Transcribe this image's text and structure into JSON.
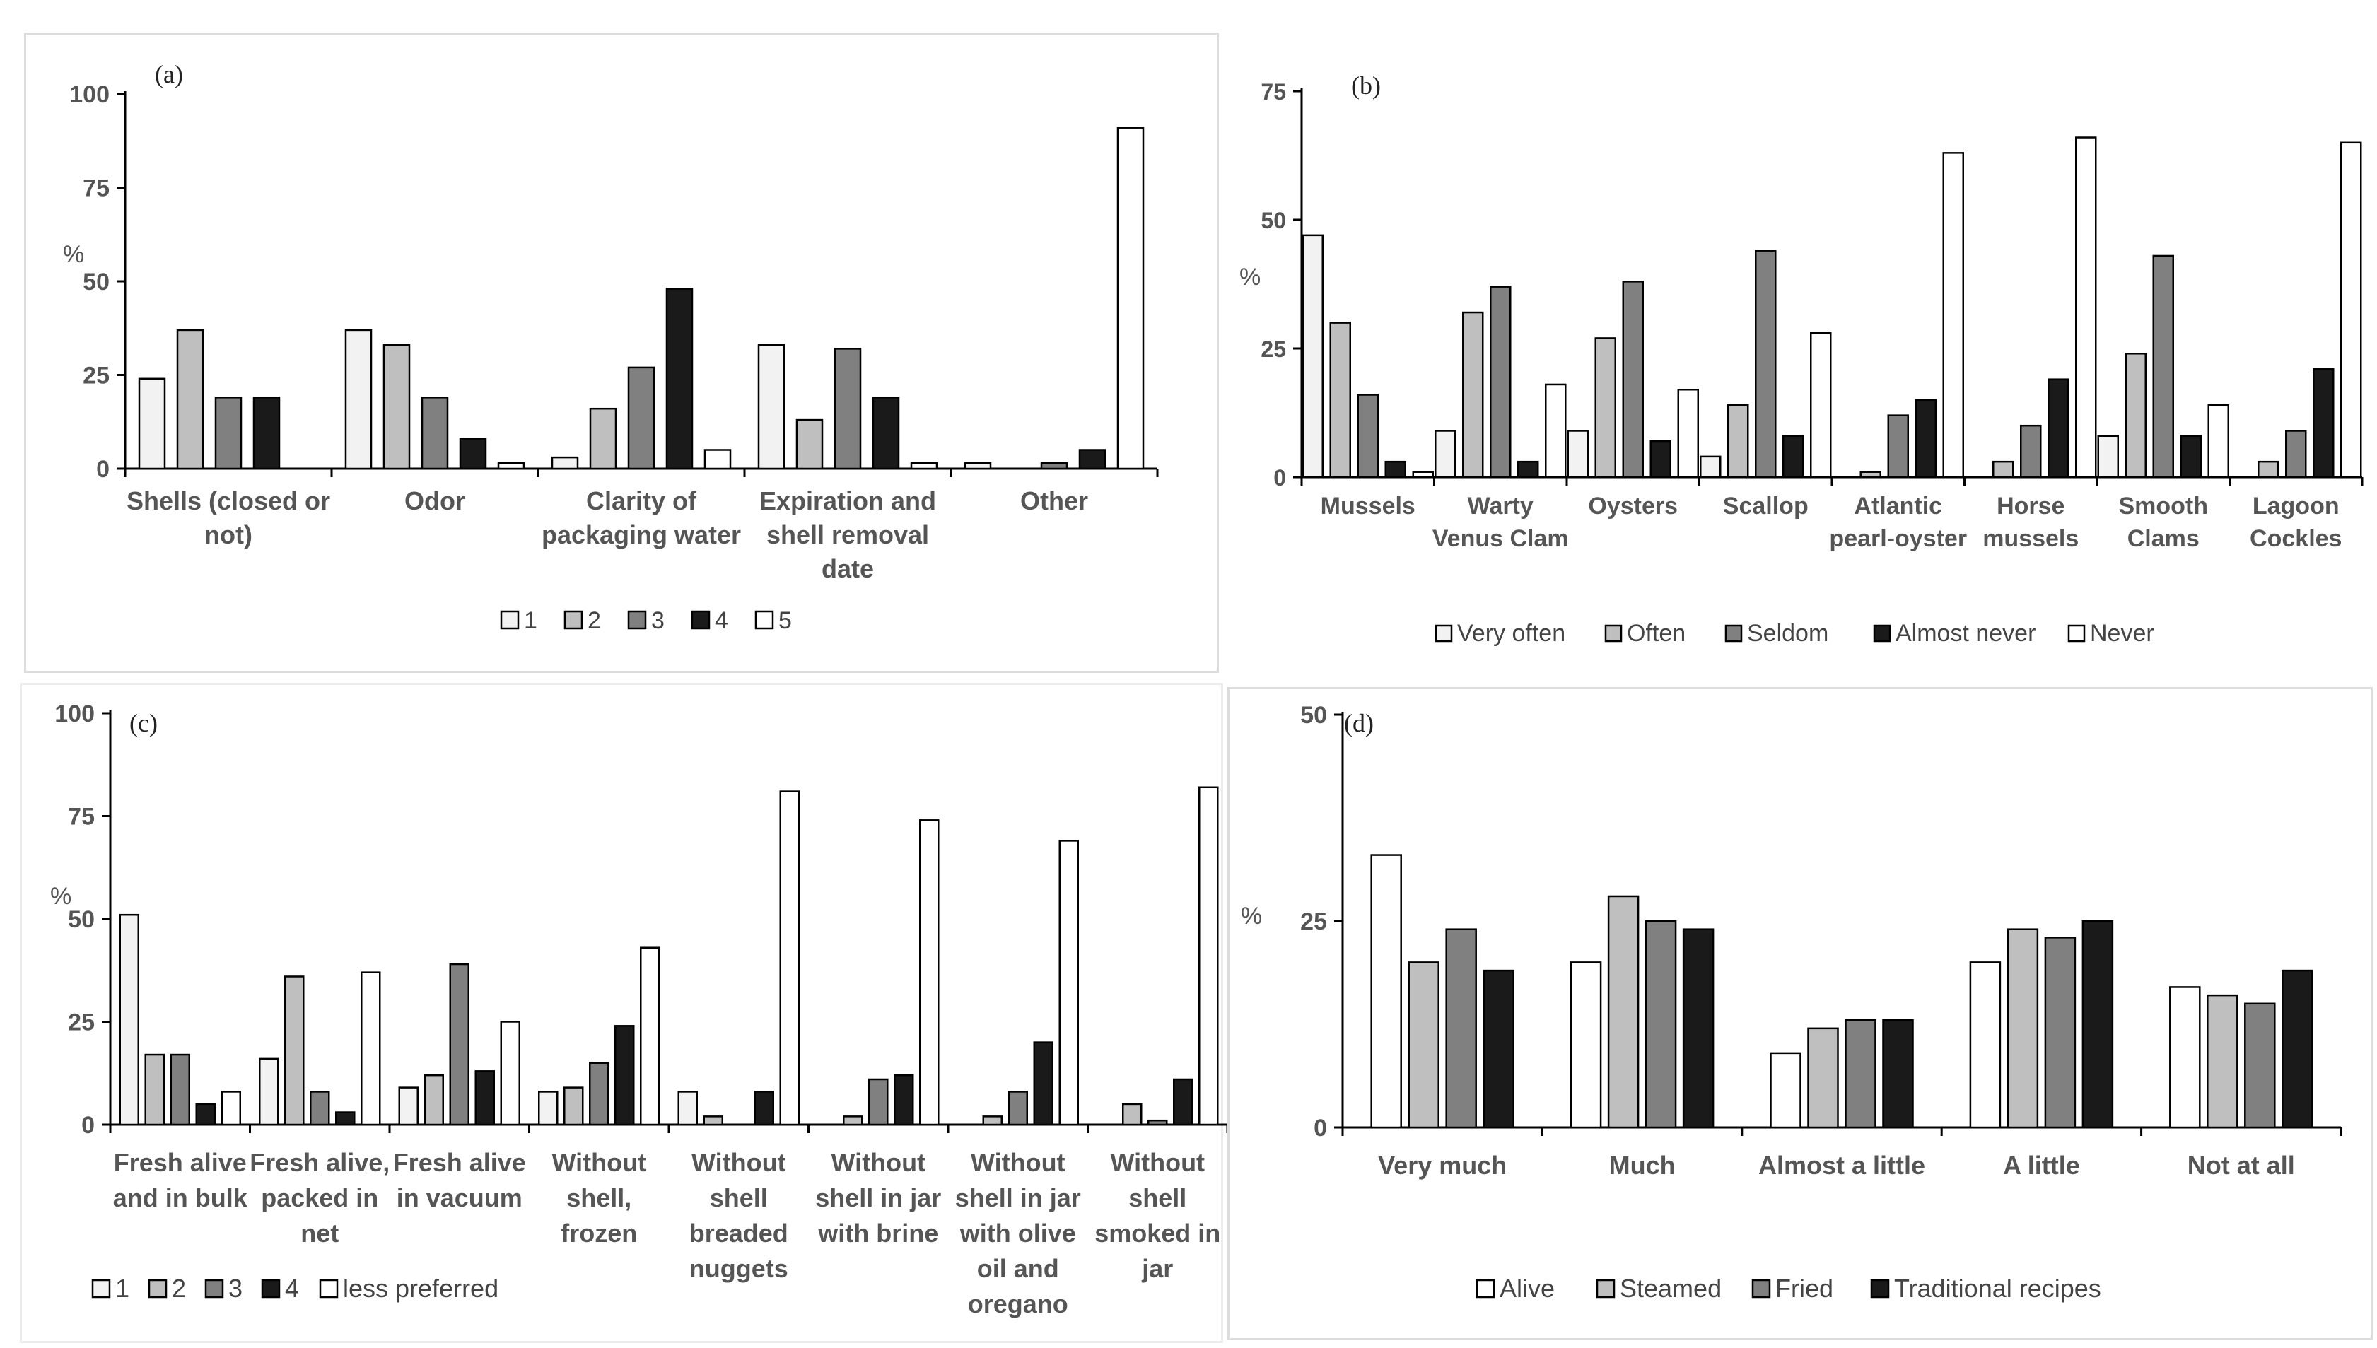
{
  "chart_data": [
    {
      "panel": "(a)",
      "type": "bar",
      "ylabel": "%",
      "ylim": [
        0,
        100
      ],
      "yticks": [
        "0",
        "25",
        "50",
        "75",
        "100"
      ],
      "categories": [
        [
          "Shells (closed or",
          "not)"
        ],
        [
          "Odor"
        ],
        [
          "Clarity of",
          "packaging water"
        ],
        [
          "Expiration and",
          "shell removal",
          "date"
        ],
        [
          "Other"
        ]
      ],
      "series": [
        {
          "name": "1",
          "color": "#f2f2f2",
          "values": [
            24,
            37,
            3,
            33,
            1.5
          ]
        },
        {
          "name": "2",
          "color": "#bfbfbf",
          "values": [
            37,
            33,
            16,
            13,
            0
          ]
        },
        {
          "name": "3",
          "color": "#808080",
          "values": [
            19,
            19,
            27,
            32,
            1.5
          ]
        },
        {
          "name": "4",
          "color": "#1a1a1a",
          "values": [
            19,
            8,
            48,
            19,
            5
          ]
        },
        {
          "name": "5",
          "color": "#ffffff",
          "values": [
            0,
            1.5,
            5,
            1.5,
            91
          ]
        }
      ],
      "legend": "bottom"
    },
    {
      "panel": "(b)",
      "type": "bar",
      "ylabel": "%",
      "ylim": [
        0,
        75
      ],
      "yticks": [
        "0",
        "25",
        "50",
        "75"
      ],
      "categories": [
        [
          "Mussels"
        ],
        [
          "Warty",
          "Venus Clam"
        ],
        [
          "Oysters"
        ],
        [
          "Scallop"
        ],
        [
          "Atlantic",
          "pearl-oyster"
        ],
        [
          "Horse",
          "mussels"
        ],
        [
          "Smooth",
          "Clams"
        ],
        [
          "Lagoon",
          "Cockles"
        ]
      ],
      "series": [
        {
          "name": "Very often",
          "color": "#f2f2f2",
          "values": [
            47,
            9,
            9,
            4,
            0,
            0,
            8,
            0
          ]
        },
        {
          "name": "Often",
          "color": "#bfbfbf",
          "values": [
            30,
            32,
            27,
            14,
            1,
            3,
            24,
            3
          ]
        },
        {
          "name": "Seldom",
          "color": "#808080",
          "values": [
            16,
            37,
            38,
            44,
            12,
            10,
            43,
            9
          ]
        },
        {
          "name": "Almost never",
          "color": "#1a1a1a",
          "values": [
            3,
            3,
            7,
            8,
            15,
            19,
            8,
            21
          ]
        },
        {
          "name": "Never",
          "color": "#ffffff",
          "values": [
            1,
            18,
            17,
            28,
            63,
            66,
            14,
            65
          ]
        }
      ],
      "legend": "bottom"
    },
    {
      "panel": "(c)",
      "type": "bar",
      "ylabel": "%",
      "ylim": [
        0,
        100
      ],
      "yticks": [
        "0",
        "25",
        "50",
        "75",
        "100"
      ],
      "categories": [
        [
          "Fresh alive",
          "and in bulk"
        ],
        [
          "Fresh alive,",
          "packed in",
          "net"
        ],
        [
          "Fresh alive",
          "in vacuum"
        ],
        [
          "Without",
          "shell,",
          "frozen"
        ],
        [
          "Without",
          "shell",
          "breaded",
          "nuggets"
        ],
        [
          "Without",
          "shell in jar",
          "with brine"
        ],
        [
          "Without",
          "shell in jar",
          "with olive",
          "oil and",
          "oregano"
        ],
        [
          "Without",
          "shell",
          "smoked in",
          "jar"
        ]
      ],
      "series": [
        {
          "name": "1",
          "color": "#f2f2f2",
          "values": [
            51,
            16,
            9,
            8,
            8,
            0,
            0,
            0
          ]
        },
        {
          "name": "2",
          "color": "#bfbfbf",
          "values": [
            17,
            36,
            12,
            9,
            2,
            2,
            2,
            5
          ]
        },
        {
          "name": "3",
          "color": "#808080",
          "values": [
            17,
            8,
            39,
            15,
            0,
            11,
            8,
            1
          ]
        },
        {
          "name": "4",
          "color": "#1a1a1a",
          "values": [
            5,
            3,
            13,
            24,
            8,
            12,
            20,
            11
          ]
        },
        {
          "name": "less preferred",
          "color": "#ffffff",
          "values": [
            8,
            37,
            25,
            43,
            81,
            74,
            69,
            82
          ]
        }
      ],
      "legend": "bottom"
    },
    {
      "panel": "(d)",
      "type": "bar",
      "ylabel": "%",
      "ylim": [
        0,
        50
      ],
      "yticks": [
        "0",
        "25",
        "50"
      ],
      "categories": [
        [
          "Very much"
        ],
        [
          "Much"
        ],
        [
          "Almost a little"
        ],
        [
          "A little"
        ],
        [
          "Not at all"
        ]
      ],
      "series": [
        {
          "name": "Alive",
          "color": "#ffffff",
          "values": [
            33,
            20,
            9,
            20,
            17
          ]
        },
        {
          "name": "Steamed",
          "color": "#bfbfbf",
          "values": [
            20,
            28,
            12,
            24,
            16
          ]
        },
        {
          "name": "Fried",
          "color": "#808080",
          "values": [
            24,
            25,
            13,
            23,
            15
          ]
        },
        {
          "name": "Traditional recipes",
          "color": "#1a1a1a",
          "values": [
            19,
            24,
            13,
            25,
            19
          ]
        }
      ],
      "legend": "bottom"
    }
  ]
}
